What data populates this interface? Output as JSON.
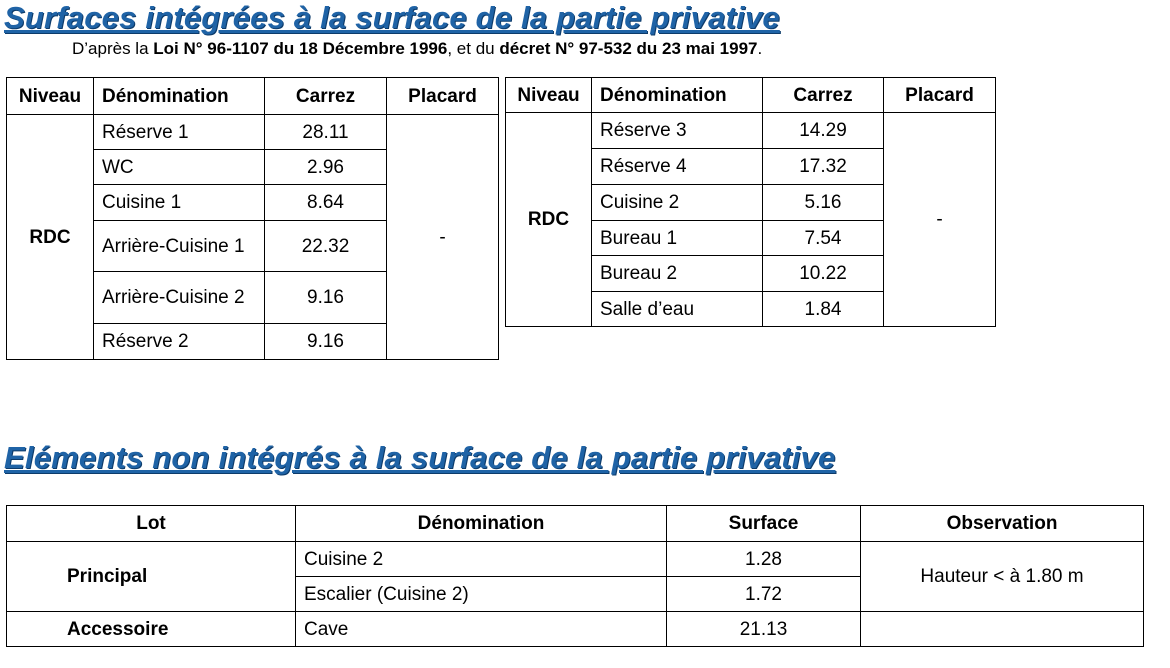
{
  "header": {
    "title": "Surfaces intégrées à la surface de la partie privative",
    "subtitle": [
      "D’après la ",
      "Loi N° 96-1107 du 18 Décembre 1996",
      ", et du ",
      "décret N° 97-532 du 23 mai 1997",
      "."
    ]
  },
  "tables": [
    {
      "columns": [
        "Niveau",
        "Dénomination",
        "Carrez",
        "Placard"
      ],
      "niveau": "RDC",
      "placard": "-",
      "rows": [
        [
          "Réserve 1",
          "28.11"
        ],
        [
          "WC",
          "2.96"
        ],
        [
          "Cuisine 1",
          "8.64"
        ],
        [
          "Arrière-Cuisine 1",
          "22.32"
        ],
        [
          "Arrière-Cuisine 2",
          "9.16"
        ],
        [
          "Réserve 2",
          "9.16"
        ]
      ]
    },
    {
      "columns": [
        "Niveau",
        "Dénomination",
        "Carrez",
        "Placard"
      ],
      "niveau": "RDC",
      "placard": "-",
      "rows": [
        [
          "Réserve 3",
          "14.29"
        ],
        [
          "Réserve 4",
          "17.32"
        ],
        [
          "Cuisine 2",
          "5.16"
        ],
        [
          "Bureau 1",
          "7.54"
        ],
        [
          "Bureau 2",
          "10.22"
        ],
        [
          "Salle d’eau",
          "1.84"
        ]
      ]
    }
  ],
  "section2": {
    "title": "Eléments non intégrés à la surface de la partie privative",
    "table": {
      "columns": [
        "Lot",
        "Dénomination",
        "Surface",
        "Observation"
      ],
      "groups": [
        {
          "lot": "Principal",
          "observation": "Hauteur < à 1.80 m",
          "rows": [
            [
              "Cuisine 2",
              "1.28"
            ],
            [
              "Escalier (Cuisine 2)",
              "1.72"
            ]
          ]
        },
        {
          "lot": "Accessoire",
          "rows": [
            [
              "Cave",
              "21.13"
            ]
          ]
        }
      ]
    }
  }
}
